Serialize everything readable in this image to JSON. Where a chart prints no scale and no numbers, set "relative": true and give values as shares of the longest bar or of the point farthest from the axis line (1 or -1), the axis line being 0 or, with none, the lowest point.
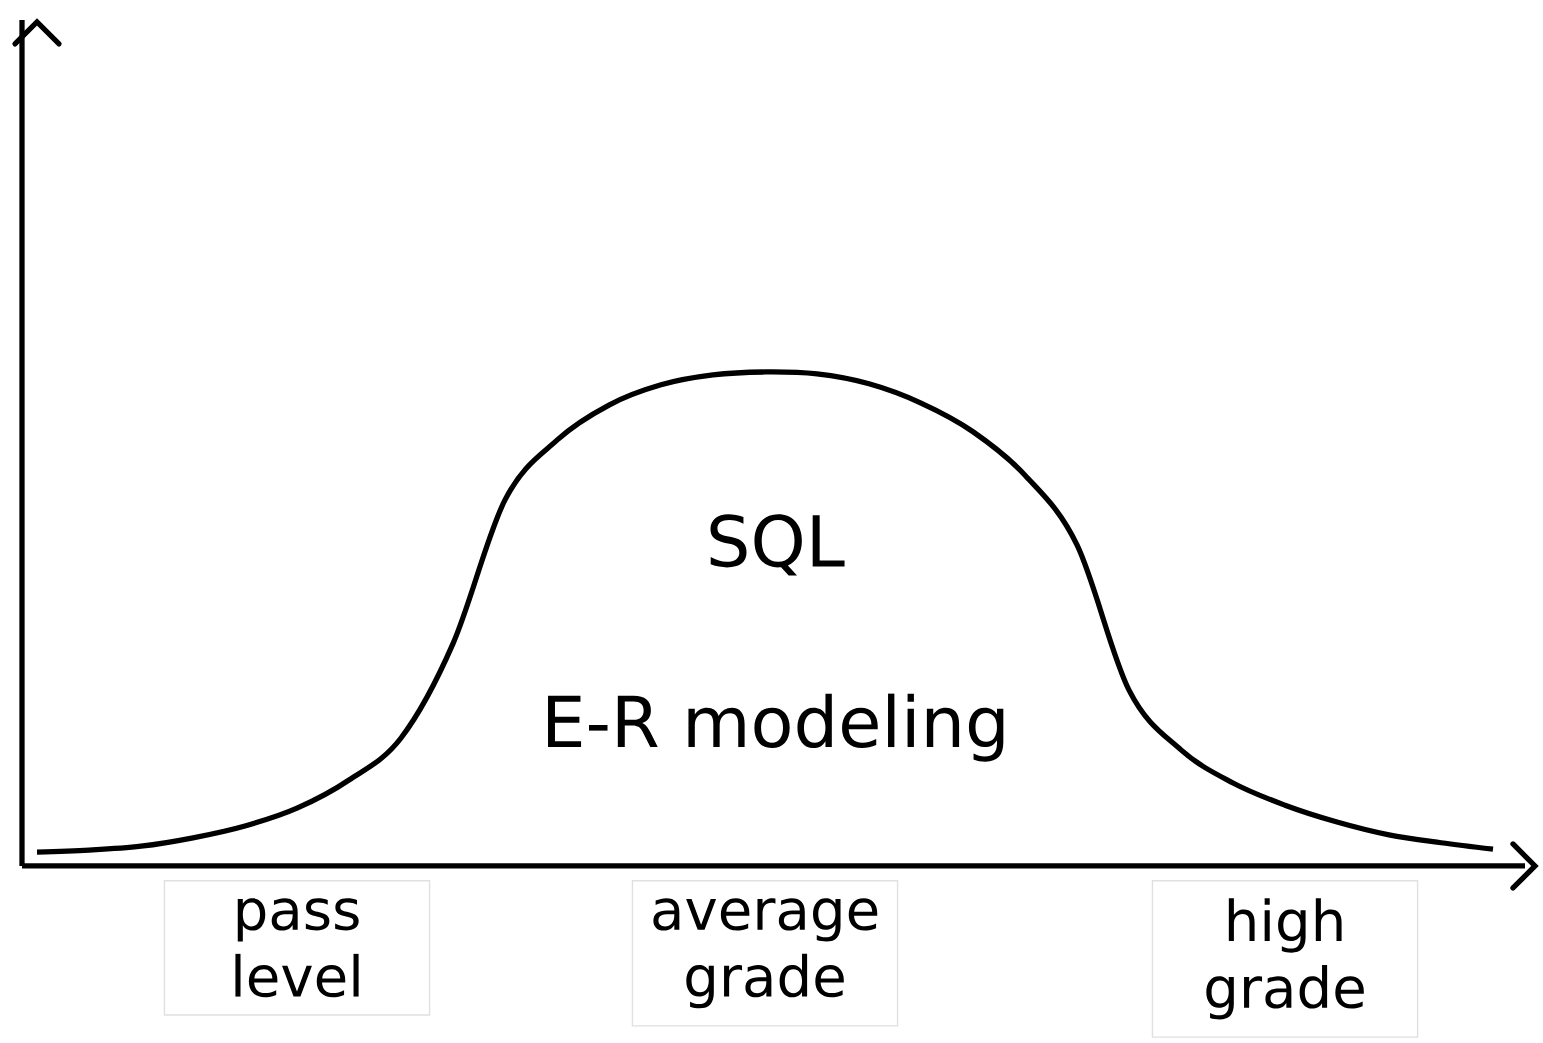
{
  "chart_data": {
    "type": "line",
    "relative": true,
    "color": "#000000",
    "categories": [
      null,
      null,
      null,
      null,
      null,
      "pass level",
      null,
      null,
      null,
      null,
      null,
      null,
      null,
      null,
      "average grade",
      null,
      null,
      null,
      null,
      null,
      null,
      null,
      null,
      null,
      "high grade",
      null,
      null,
      null,
      null
    ],
    "values": [
      0.028,
      0.032,
      0.04,
      0.057,
      0.081,
      0.117,
      0.174,
      0.259,
      0.45,
      0.741,
      0.862,
      0.933,
      0.974,
      0.994,
      1.0,
      0.996,
      0.976,
      0.937,
      0.879,
      0.791,
      0.65,
      0.356,
      0.235,
      0.168,
      0.123,
      0.089,
      0.063,
      0.047,
      0.034
    ],
    "annotations": [
      "SQL",
      "E-R modeling"
    ]
  }
}
